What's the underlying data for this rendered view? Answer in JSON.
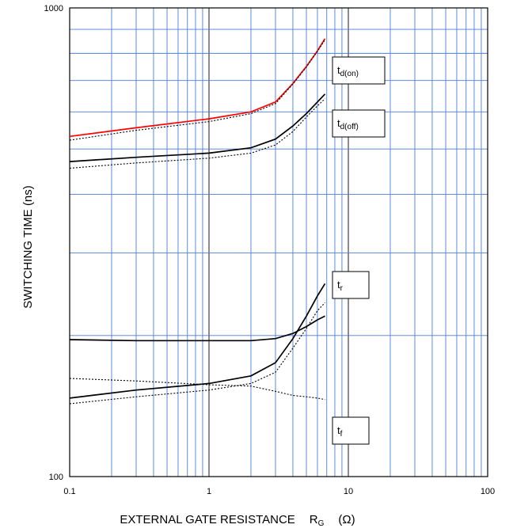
{
  "chart_data": {
    "type": "line",
    "title": "",
    "xlabel": "EXTERNAL GATE RESISTANCE",
    "xlabel_symbol": "R",
    "xlabel_subscript": "G",
    "xlabel_unit": "(Ω)",
    "ylabel": "SWITCHING TIME (ns)",
    "x_scale": "log",
    "y_scale": "log",
    "xlim": [
      0.1,
      100
    ],
    "ylim": [
      100,
      1000
    ],
    "x_tick_labels": [
      "0.1",
      "1",
      "10",
      "100"
    ],
    "y_tick_labels": [
      "100",
      "1000"
    ],
    "grid": true,
    "grid_color": "#4a7fd8",
    "series": [
      {
        "name": "td(on)",
        "color": "#ff0000",
        "style": "solid",
        "x": [
          0.1,
          0.3,
          1,
          2,
          3,
          4,
          5,
          6,
          6.8
        ],
        "y": [
          532,
          555,
          580,
          600,
          630,
          690,
          750,
          810,
          860
        ]
      },
      {
        "color": "#000000",
        "style": "dotted",
        "x": [
          0.1,
          0.3,
          1,
          2,
          3,
          4,
          5,
          6,
          6.8
        ],
        "y": [
          522,
          548,
          572,
          595,
          625,
          688,
          748,
          808,
          855
        ]
      },
      {
        "name": "td(off)",
        "color": "#000000",
        "style": "solid",
        "x": [
          0.1,
          0.3,
          1,
          2,
          3,
          4,
          5,
          6,
          6.8
        ],
        "y": [
          470,
          480,
          490,
          503,
          525,
          560,
          595,
          630,
          655
        ]
      },
      {
        "color": "#000000",
        "style": "dotted",
        "x": [
          0.1,
          0.3,
          1,
          2,
          3,
          4,
          5,
          6,
          6.8
        ],
        "y": [
          455,
          467,
          478,
          490,
          510,
          545,
          585,
          618,
          640
        ]
      },
      {
        "name": "tr",
        "color": "#000000",
        "style": "solid",
        "x": [
          0.1,
          0.3,
          1,
          2,
          3,
          4,
          5,
          6,
          6.8
        ],
        "y": [
          147,
          153,
          158,
          164,
          175,
          197,
          220,
          243,
          258
        ]
      },
      {
        "color": "#000000",
        "style": "dotted",
        "x": [
          0.1,
          0.3,
          1,
          2,
          3,
          4,
          5,
          6,
          6.8
        ],
        "y": [
          143,
          148,
          153,
          158,
          167,
          188,
          207,
          226,
          235
        ]
      },
      {
        "name": "tf",
        "color": "#000000",
        "style": "solid",
        "x": [
          0.1,
          0.3,
          1,
          2,
          3,
          4,
          5,
          6,
          6.8
        ],
        "y": [
          196,
          195,
          195,
          195,
          197,
          202,
          209,
          216,
          220
        ]
      },
      {
        "color": "#000000",
        "style": "dotted",
        "x": [
          0.1,
          0.3,
          1,
          2,
          3,
          4,
          5,
          6,
          6.8
        ],
        "y": [
          162,
          160,
          157,
          156,
          152,
          149,
          148,
          147,
          146
        ]
      }
    ],
    "legend": [
      {
        "base": "t",
        "sub": "d(on)"
      },
      {
        "base": "t",
        "sub": "d(off)"
      },
      {
        "base": "t",
        "sub": "r"
      },
      {
        "base": "t",
        "sub": "f"
      }
    ]
  }
}
